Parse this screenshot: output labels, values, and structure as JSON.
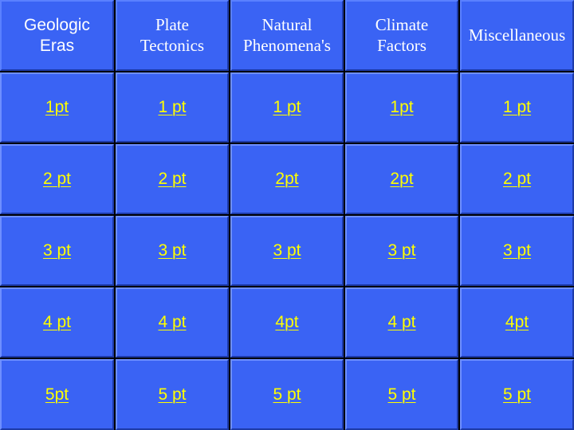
{
  "categories": [
    {
      "label": "Geologic\nEras",
      "font": "sans"
    },
    {
      "label": "Plate\nTectonics",
      "font": "serif"
    },
    {
      "label": "Natural\nPhenomena's",
      "font": "serif"
    },
    {
      "label": "Climate\nFactors",
      "font": "serif"
    },
    {
      "label": "Miscellaneous",
      "font": "serif"
    }
  ],
  "rows": [
    [
      "1pt",
      "1 pt",
      "1 pt",
      "1pt",
      "1 pt"
    ],
    [
      "2 pt",
      "2 pt",
      "2pt",
      "2pt",
      "2 pt"
    ],
    [
      "3 pt",
      "3 pt",
      "3 pt",
      "3 pt",
      "3 pt"
    ],
    [
      "4 pt",
      "4 pt",
      "4pt",
      "4 pt",
      "4pt"
    ],
    [
      "5pt",
      "5 pt",
      "5 pt",
      "5 pt",
      "5 pt"
    ]
  ],
  "colors": {
    "tile": "#3a63f4",
    "link_text": "#ffff00",
    "header_text": "#ffffff",
    "gridline": "#000000"
  }
}
